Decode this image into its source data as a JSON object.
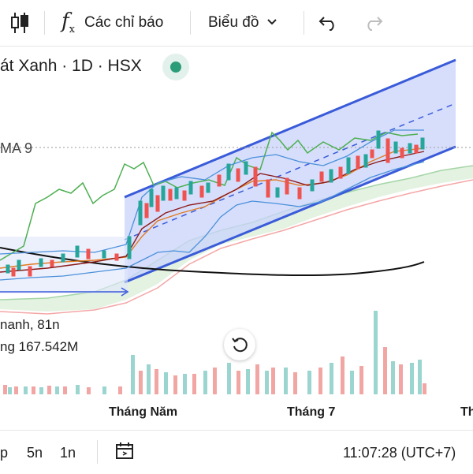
{
  "toolbar": {
    "indicators_label": "Các chỉ báo",
    "chart_type_label": "Biểu đồ"
  },
  "chart": {
    "title": "át Xanh · 1D · HSX",
    "ma_label": "MA 9",
    "legend_line1": "nanh, 81n",
    "legend_line2": "ng 167.542M",
    "x_labels": [
      "Tháng Năm",
      "Tháng 7",
      "Th"
    ],
    "colors": {
      "up": "#26a69a",
      "down": "#ef5350",
      "channel_fill": "#c9d3fb",
      "channel_line": "#3a5bd9",
      "ma9": "#4caf50"
    }
  },
  "bottombar": {
    "range_items": [
      "p",
      "5n",
      "1n"
    ],
    "time": "11:07:28 (UTC+7)"
  }
}
